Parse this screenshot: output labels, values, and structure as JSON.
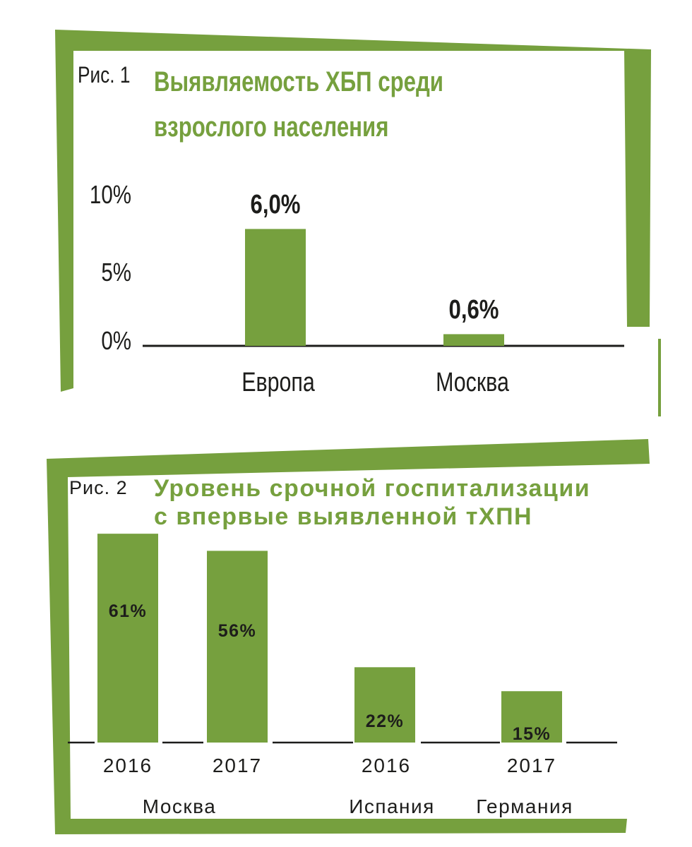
{
  "colors": {
    "accent": "#76a03e",
    "text": "#1d1d1b",
    "axis": "#1d1d1b"
  },
  "chart_data": [
    {
      "type": "bar",
      "label": "Рис. 1",
      "title": "Выявляемость ХБП среди взрослого населения",
      "title_lines": [
        "Выявляемость ХБП среди",
        "взрослого населения"
      ],
      "categories": [
        "Европа",
        "Москва"
      ],
      "values": [
        6.0,
        0.6
      ],
      "value_labels": [
        "6,0%",
        "0,6%"
      ],
      "ytick_labels": [
        "10%",
        "5%",
        "0%"
      ],
      "yticks": [
        10,
        5,
        0
      ],
      "ylim": [
        0,
        10
      ],
      "xlabel": "",
      "ylabel": "",
      "grid": false
    },
    {
      "type": "bar",
      "label": "Рис. 2",
      "title": "Уровень срочной госпитализации с впервые выявленной тХПН",
      "title_lines": [
        "Уровень срочной госпитализации",
        "с впервые выявленной тХПН"
      ],
      "categories": [
        "2016",
        "2017",
        "2016",
        "2017"
      ],
      "groups": [
        "Москва",
        "Испания",
        "Германия"
      ],
      "values": [
        61,
        56,
        22,
        15
      ],
      "value_labels": [
        "61%",
        "56%",
        "22%",
        "15%"
      ],
      "xlabel": "",
      "ylabel": "",
      "grid": false
    }
  ]
}
